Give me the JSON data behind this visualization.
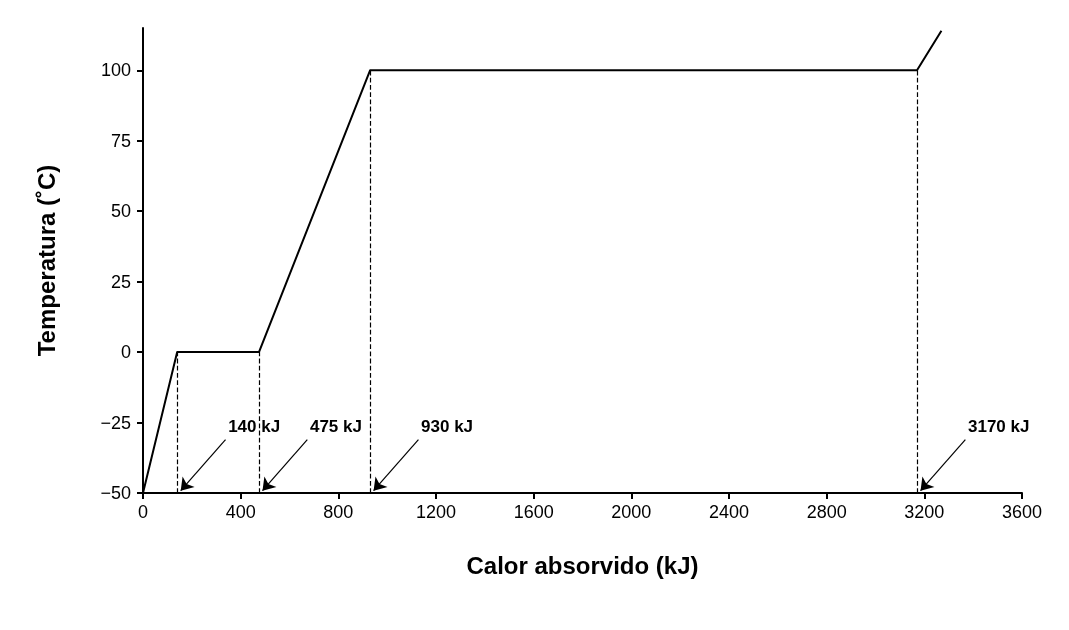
{
  "chart_data": {
    "type": "line",
    "xlabel": "Calor absorvido (kJ)",
    "ylabel": "Temperatura (˚C)",
    "x": [
      0,
      140,
      475,
      930,
      3170,
      3270
    ],
    "series": [
      {
        "color": "#000000",
        "values": [
          -50,
          0,
          0,
          100,
          100,
          114
        ]
      }
    ],
    "xlim": [
      0,
      3600
    ],
    "xticks": [
      0,
      400,
      800,
      1200,
      1600,
      2000,
      2400,
      2800,
      3200,
      3600
    ],
    "ylim": [
      -50,
      115
    ],
    "yticks": [
      -50,
      -25,
      0,
      25,
      50,
      75,
      100
    ],
    "grid": false,
    "marker": "none",
    "line_style": "solid",
    "ref_lines": [
      {
        "axis": "x",
        "value": 140,
        "label": "140 kJ",
        "color": "#000000",
        "line_style": "dashed"
      },
      {
        "axis": "x",
        "value": 475,
        "label": "475 kJ",
        "color": "#000000",
        "line_style": "dashed"
      },
      {
        "axis": "x",
        "value": 930,
        "label": "930 kJ",
        "color": "#000000",
        "line_style": "dashed"
      },
      {
        "axis": "x",
        "value": 3170,
        "label": "3170 kJ",
        "color": "#000000",
        "line_style": "dashed"
      }
    ]
  }
}
